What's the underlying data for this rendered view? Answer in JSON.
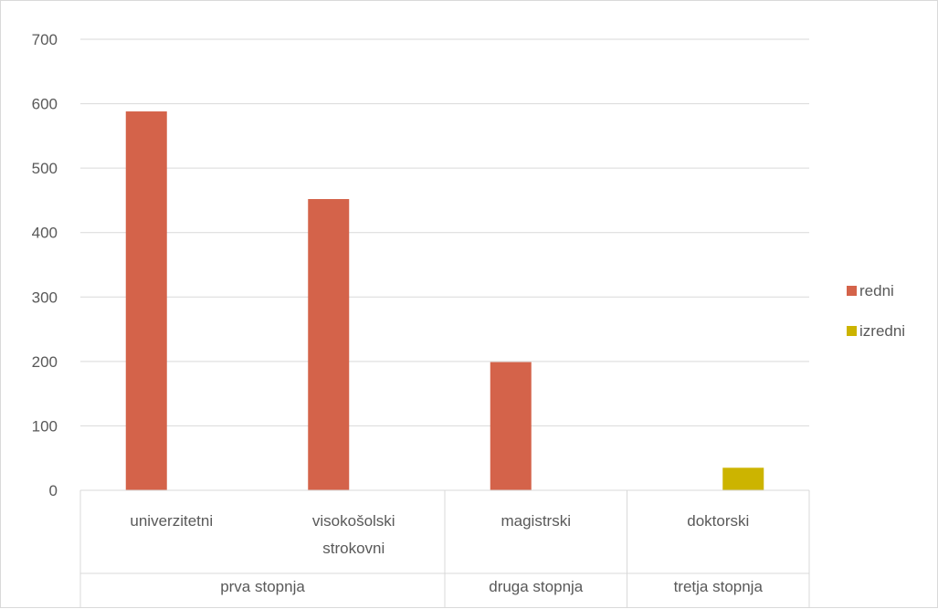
{
  "chart_data": {
    "type": "bar",
    "title": "",
    "xlabel": "",
    "ylabel": "",
    "ylim": [
      0,
      700
    ],
    "yticks": [
      0,
      100,
      200,
      300,
      400,
      500,
      600,
      700
    ],
    "grid": true,
    "legend_position": "right",
    "categories": [
      "univerzitetni",
      "visokošolski strokovni",
      "magistrski",
      "doktorski"
    ],
    "category_lines": [
      [
        "univerzitetni"
      ],
      [
        "visokošolski",
        "strokovni"
      ],
      [
        "magistrski"
      ],
      [
        "doktorski"
      ]
    ],
    "groups": [
      {
        "label": "prva stopnja",
        "categories": [
          "univerzitetni",
          "visokošolski strokovni"
        ]
      },
      {
        "label": "druga stopnja",
        "categories": [
          "magistrski"
        ]
      },
      {
        "label": "tretja stopnja",
        "categories": [
          "doktorski"
        ]
      }
    ],
    "series": [
      {
        "name": "redni",
        "color": "#d4634a",
        "values": [
          588,
          452,
          199,
          0
        ]
      },
      {
        "name": "izredni",
        "color": "#ccb400",
        "values": [
          0,
          0,
          0,
          35
        ]
      }
    ]
  }
}
